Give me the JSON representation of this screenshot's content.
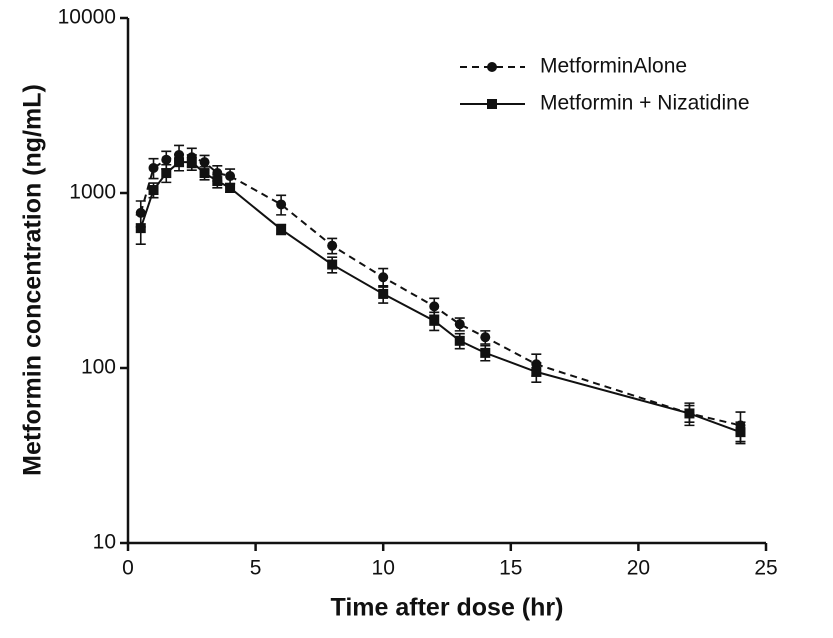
{
  "chart_data": {
    "type": "line",
    "xlabel": "Time after dose (hr)",
    "ylabel": "Metformin concentration (ng/mL)",
    "log_y": true,
    "legend": "upper right",
    "xlim": [
      0,
      25
    ],
    "xticks": [
      0,
      5,
      10,
      15,
      20,
      25
    ],
    "ylim": [
      10,
      10000
    ],
    "yticks": [
      10,
      100,
      1000,
      10000
    ],
    "x": [
      0.5,
      1,
      1.5,
      2,
      2.5,
      3,
      3.5,
      4,
      6,
      8,
      10,
      12,
      13,
      14,
      16,
      22,
      24
    ],
    "series": [
      {
        "name": "MetforminAlone",
        "color": "#111111",
        "dash": true,
        "marker": "circle",
        "values": [
          770,
          1390,
          1550,
          1650,
          1600,
          1500,
          1300,
          1250,
          860,
          500,
          330,
          225,
          178,
          150,
          105,
          55,
          47
        ],
        "errors": [
          130,
          180,
          180,
          220,
          200,
          140,
          130,
          120,
          110,
          50,
          40,
          25,
          15,
          13,
          15,
          8,
          9
        ]
      },
      {
        "name": "Metformin + Nizatidine",
        "color": "#111111",
        "dash": false,
        "marker": "square",
        "values": [
          630,
          1040,
          1300,
          1500,
          1500,
          1300,
          1170,
          1070,
          620,
          390,
          265,
          186,
          143,
          122,
          95,
          55,
          43
        ],
        "errors": [
          120,
          100,
          150,
          160,
          150,
          110,
          100,
          60,
          40,
          40,
          30,
          22,
          14,
          12,
          12,
          6,
          6
        ]
      }
    ]
  }
}
